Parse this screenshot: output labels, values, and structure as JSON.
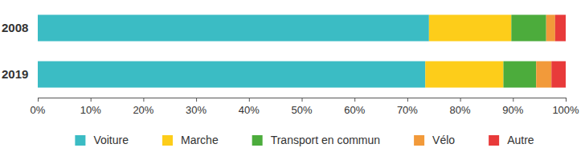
{
  "chart_data": {
    "type": "bar",
    "orientation": "horizontal",
    "stacked": true,
    "categories": [
      "2008",
      "2019"
    ],
    "series": [
      {
        "name": "Voiture",
        "color": "#3bbcc4",
        "values": [
          74.1,
          73.4
        ]
      },
      {
        "name": "Marche",
        "color": "#fdcd1a",
        "values": [
          15.6,
          14.8
        ]
      },
      {
        "name": "Transport en commun",
        "color": "#4cac3c",
        "values": [
          6.6,
          6.2
        ]
      },
      {
        "name": "Vélo",
        "color": "#f29a3a",
        "values": [
          1.7,
          2.9
        ]
      },
      {
        "name": "Autre",
        "color": "#e83a3a",
        "values": [
          2.0,
          2.7
        ]
      }
    ],
    "xlim": [
      0,
      100
    ],
    "xticks": [
      {
        "value": 0,
        "label": "0%"
      },
      {
        "value": 10,
        "label": "10%"
      },
      {
        "value": 20,
        "label": "20%"
      },
      {
        "value": 30,
        "label": "30%"
      },
      {
        "value": 40,
        "label": "40%"
      },
      {
        "value": 50,
        "label": "50%"
      },
      {
        "value": 60,
        "label": "60%"
      },
      {
        "value": 70,
        "label": "70%"
      },
      {
        "value": 80,
        "label": "80%"
      },
      {
        "value": 90,
        "label": "90%"
      },
      {
        "value": 100,
        "label": "100%"
      }
    ],
    "grid": false,
    "legend": "bottom"
  }
}
